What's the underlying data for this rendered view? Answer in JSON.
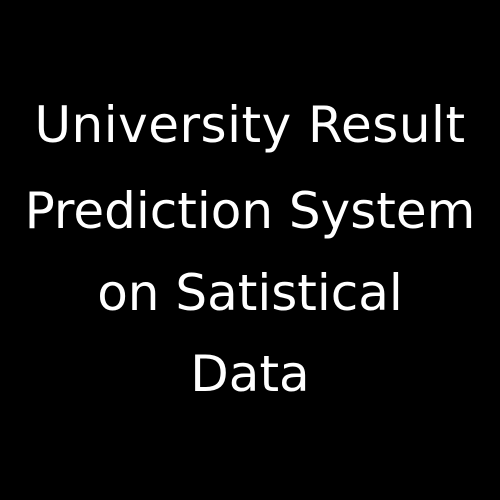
{
  "title": {
    "lines": [
      "University Result",
      "Prediction System",
      "on Satistical",
      "Data"
    ]
  },
  "colors": {
    "background": "#000000",
    "text": "#ffffff"
  }
}
